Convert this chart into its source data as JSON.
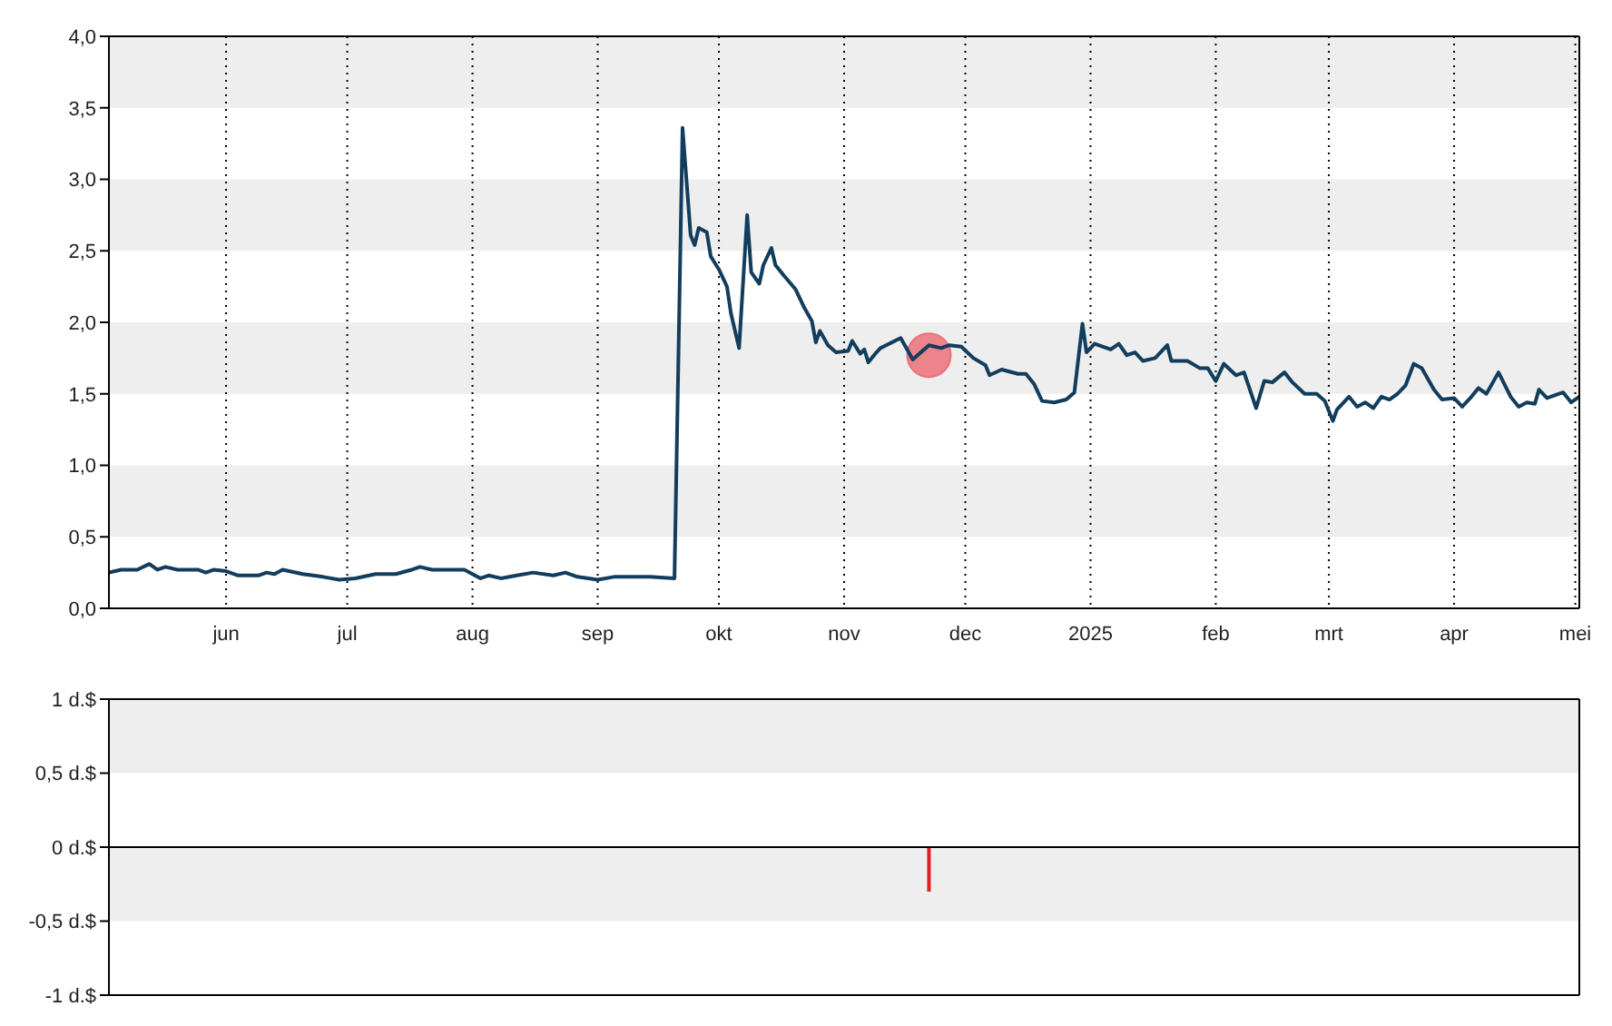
{
  "chart_data": [
    {
      "type": "line",
      "x": [
        "2024-05-03",
        "2024-05-06",
        "2024-05-10",
        "2024-05-13",
        "2024-05-15",
        "2024-05-17",
        "2024-05-20",
        "2024-05-25",
        "2024-05-27",
        "2024-05-29",
        "2024-06-01",
        "2024-06-04",
        "2024-06-09",
        "2024-06-11",
        "2024-06-13",
        "2024-06-15",
        "2024-06-20",
        "2024-06-25",
        "2024-06-29",
        "2024-07-03",
        "2024-07-08",
        "2024-07-13",
        "2024-07-17",
        "2024-07-19",
        "2024-07-22",
        "2024-07-30",
        "2024-08-03",
        "2024-08-05",
        "2024-08-08",
        "2024-08-12",
        "2024-08-16",
        "2024-08-21",
        "2024-08-24",
        "2024-08-27",
        "2024-09-01",
        "2024-09-05",
        "2024-09-14",
        "2024-09-20",
        "2024-09-22",
        "2024-09-24",
        "2024-09-25",
        "2024-09-26",
        "2024-09-28",
        "2024-09-29",
        "2024-10-01",
        "2024-10-03",
        "2024-10-04",
        "2024-10-06",
        "2024-10-08",
        "2024-10-09",
        "2024-10-11",
        "2024-10-12",
        "2024-10-14",
        "2024-10-15",
        "2024-10-17",
        "2024-10-20",
        "2024-10-22",
        "2024-10-24",
        "2024-10-25",
        "2024-10-26",
        "2024-10-28",
        "2024-10-30",
        "2024-11-02",
        "2024-11-03",
        "2024-11-05",
        "2024-11-06",
        "2024-11-07",
        "2024-11-09",
        "2024-11-10",
        "2024-11-15",
        "2024-11-18",
        "2024-11-22",
        "2024-11-25",
        "2024-11-27",
        "2024-11-30",
        "2024-12-03",
        "2024-12-06",
        "2024-12-07",
        "2024-12-10",
        "2024-12-14",
        "2024-12-16",
        "2024-12-18",
        "2024-12-20",
        "2024-12-23",
        "2024-12-26",
        "2024-12-28",
        "2024-12-30",
        "2024-12-31",
        "2025-01-02",
        "2025-01-06",
        "2025-01-08",
        "2025-01-10",
        "2025-01-12",
        "2025-01-14",
        "2025-01-17",
        "2025-01-20",
        "2025-01-21",
        "2025-01-25",
        "2025-01-28",
        "2025-01-30",
        "2025-02-01",
        "2025-02-03",
        "2025-02-06",
        "2025-02-08",
        "2025-02-11",
        "2025-02-13",
        "2025-02-15",
        "2025-02-18",
        "2025-02-20",
        "2025-02-23",
        "2025-02-26",
        "2025-02-28",
        "2025-03-02",
        "2025-03-03",
        "2025-03-06",
        "2025-03-08",
        "2025-03-10",
        "2025-03-12",
        "2025-03-14",
        "2025-03-16",
        "2025-03-18",
        "2025-03-20",
        "2025-03-22",
        "2025-03-24",
        "2025-03-27",
        "2025-03-29",
        "2025-04-01",
        "2025-04-03",
        "2025-04-05",
        "2025-04-07",
        "2025-04-09",
        "2025-04-12",
        "2025-04-15",
        "2025-04-17",
        "2025-04-19",
        "2025-04-21",
        "2025-04-22",
        "2025-04-24",
        "2025-04-28",
        "2025-04-30",
        "2025-05-02"
      ],
      "series": [
        {
          "color": "#123d5c",
          "values": [
            0.25,
            0.27,
            0.27,
            0.31,
            0.27,
            0.29,
            0.27,
            0.27,
            0.25,
            0.27,
            0.26,
            0.23,
            0.23,
            0.25,
            0.24,
            0.27,
            0.24,
            0.22,
            0.2,
            0.21,
            0.24,
            0.24,
            0.27,
            0.29,
            0.27,
            0.27,
            0.21,
            0.23,
            0.21,
            0.23,
            0.25,
            0.23,
            0.25,
            0.22,
            0.2,
            0.22,
            0.22,
            0.21,
            3.36,
            2.61,
            2.54,
            2.66,
            2.63,
            2.46,
            2.37,
            2.25,
            2.06,
            1.82,
            2.75,
            2.35,
            2.27,
            2.4,
            2.52,
            2.4,
            2.33,
            2.23,
            2.11,
            2.01,
            1.86,
            1.94,
            1.84,
            1.79,
            1.8,
            1.87,
            1.78,
            1.81,
            1.72,
            1.79,
            1.82,
            1.89,
            1.74,
            1.84,
            1.82,
            1.84,
            1.83,
            1.75,
            1.7,
            1.63,
            1.67,
            1.64,
            1.64,
            1.57,
            1.45,
            1.44,
            1.46,
            1.51,
            1.99,
            1.79,
            1.85,
            1.81,
            1.85,
            1.77,
            1.79,
            1.73,
            1.75,
            1.84,
            1.73,
            1.73,
            1.68,
            1.68,
            1.59,
            1.71,
            1.63,
            1.65,
            1.4,
            1.59,
            1.58,
            1.65,
            1.58,
            1.5,
            1.5,
            1.45,
            1.31,
            1.39,
            1.48,
            1.41,
            1.44,
            1.4,
            1.48,
            1.46,
            1.5,
            1.56,
            1.71,
            1.68,
            1.53,
            1.46,
            1.47,
            1.41,
            1.47,
            1.54,
            1.5,
            1.65,
            1.48,
            1.41,
            1.44,
            1.43,
            1.53,
            1.47,
            1.51,
            1.44,
            1.48
          ]
        },
        {
          "type": "scatter",
          "x": [
            "2024-11-22"
          ],
          "values": [
            1.77
          ],
          "color": "#ec7079",
          "marker": "circle"
        }
      ],
      "xlim": [
        "2024-05-03",
        "2025-05-02"
      ],
      "xticks": [
        {
          "value": "2024-06-01",
          "label": "jun"
        },
        {
          "value": "2024-07-01",
          "label": "jul"
        },
        {
          "value": "2024-08-01",
          "label": "aug"
        },
        {
          "value": "2024-09-01",
          "label": "sep"
        },
        {
          "value": "2024-10-01",
          "label": "okt"
        },
        {
          "value": "2024-11-01",
          "label": "nov"
        },
        {
          "value": "2024-12-01",
          "label": "dec"
        },
        {
          "value": "2025-01-01",
          "label": "2025"
        },
        {
          "value": "2025-02-01",
          "label": "feb"
        },
        {
          "value": "2025-03-01",
          "label": "mrt"
        },
        {
          "value": "2025-04-01",
          "label": "apr"
        },
        {
          "value": "2025-05-01",
          "label": "mei"
        }
      ],
      "ylim": [
        0,
        4
      ],
      "yticks": [
        {
          "value": 0,
          "label": "0,0"
        },
        {
          "value": 0.5,
          "label": "0,5"
        },
        {
          "value": 1,
          "label": "1,0"
        },
        {
          "value": 1.5,
          "label": "1,5"
        },
        {
          "value": 2,
          "label": "2,0"
        },
        {
          "value": 2.5,
          "label": "2,5"
        },
        {
          "value": 3,
          "label": "3,0"
        },
        {
          "value": 3.5,
          "label": "3,5"
        },
        {
          "value": 4,
          "label": "4,0"
        }
      ],
      "bands": [
        {
          "axis": "y",
          "from": 3.5,
          "to": 4,
          "color": "#eeeeee"
        },
        {
          "axis": "y",
          "from": 2.5,
          "to": 3,
          "color": "#eeeeee"
        },
        {
          "axis": "y",
          "from": 1.5,
          "to": 2,
          "color": "#eeeeee"
        },
        {
          "axis": "y",
          "from": 0.5,
          "to": 1,
          "color": "#eeeeee"
        }
      ],
      "grid": "x"
    },
    {
      "type": "bar",
      "x": [
        "2024-11-22"
      ],
      "values": [
        -0.3
      ],
      "color": "#e31e24",
      "xlim": [
        "2024-05-03",
        "2025-05-02"
      ],
      "ylim": [
        -1,
        1
      ],
      "yticks": [
        {
          "value": -1,
          "label": "-1 d.$"
        },
        {
          "value": -0.5,
          "label": "-0,5 d.$"
        },
        {
          "value": 0,
          "label": "0 d.$"
        },
        {
          "value": 0.5,
          "label": "0,5 d.$"
        },
        {
          "value": 1,
          "label": "1 d.$"
        }
      ],
      "bands": [
        {
          "axis": "y",
          "from": 0.5,
          "to": 1,
          "color": "#eeeeee"
        },
        {
          "axis": "y",
          "from": -0.5,
          "to": 0,
          "color": "#eeeeee"
        }
      ],
      "ref_lines": [
        {
          "axis": "y",
          "value": 0,
          "color": "#000000"
        }
      ],
      "tick_labels": "y"
    }
  ]
}
